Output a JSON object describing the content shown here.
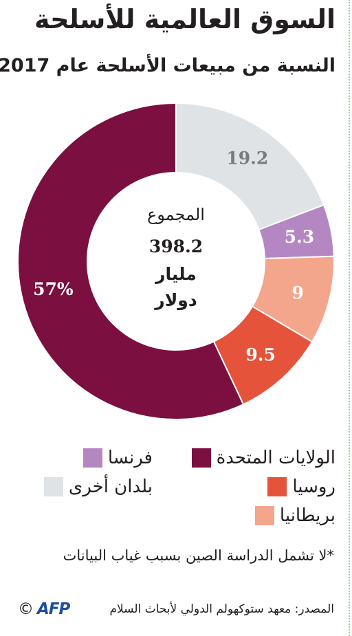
{
  "title": "السوق العالمية للأسلحة",
  "subtitle": "النسبة من مبيعات الأسلحة عام 2017",
  "center": {
    "line1": "المجموع",
    "line2": "398.2",
    "line3": "مليار",
    "line4": "دولار"
  },
  "chart_data": {
    "type": "pie",
    "title": "النسبة من مبيعات الأسلحة عام 2017",
    "total_label": "المجموع 398.2 مليار دولار",
    "slices": [
      {
        "name": "بلدان أخرى",
        "value": 19.2,
        "label": "19.2",
        "color": "#dfe3e5",
        "label_color": "#7a7a7a"
      },
      {
        "name": "فرنسا",
        "value": 5.3,
        "label": "5.3",
        "color": "#b487c2",
        "label_color": "#ffffff"
      },
      {
        "name": "بريطانيا",
        "value": 9,
        "label": "9",
        "color": "#f4a68c",
        "label_color": "#ffffff"
      },
      {
        "name": "روسيا",
        "value": 9.5,
        "label": "9.5",
        "color": "#e5533a",
        "label_color": "#ffffff"
      },
      {
        "name": "الولايات المتحدة",
        "value": 57,
        "label": "57%",
        "color": "#7b0f3f",
        "label_color": "#ffffff"
      }
    ]
  },
  "legend": [
    {
      "label": "الولايات المتحدة",
      "color": "#7b0f3f"
    },
    {
      "label": "فرنسا",
      "color": "#b487c2"
    },
    {
      "label": "روسيا",
      "color": "#e5533a"
    },
    {
      "label": "بلدان أخرى",
      "color": "#dfe3e5"
    },
    {
      "label": "بريطانيا",
      "color": "#f4a68c"
    }
  ],
  "note": "*لا تشمل الدراسة الصين بسبب غياب البيانات",
  "source": "المصدر: معهد ستوكهولم الدولي لأبحاث السلام",
  "brand": "AFP",
  "copyright": "©"
}
